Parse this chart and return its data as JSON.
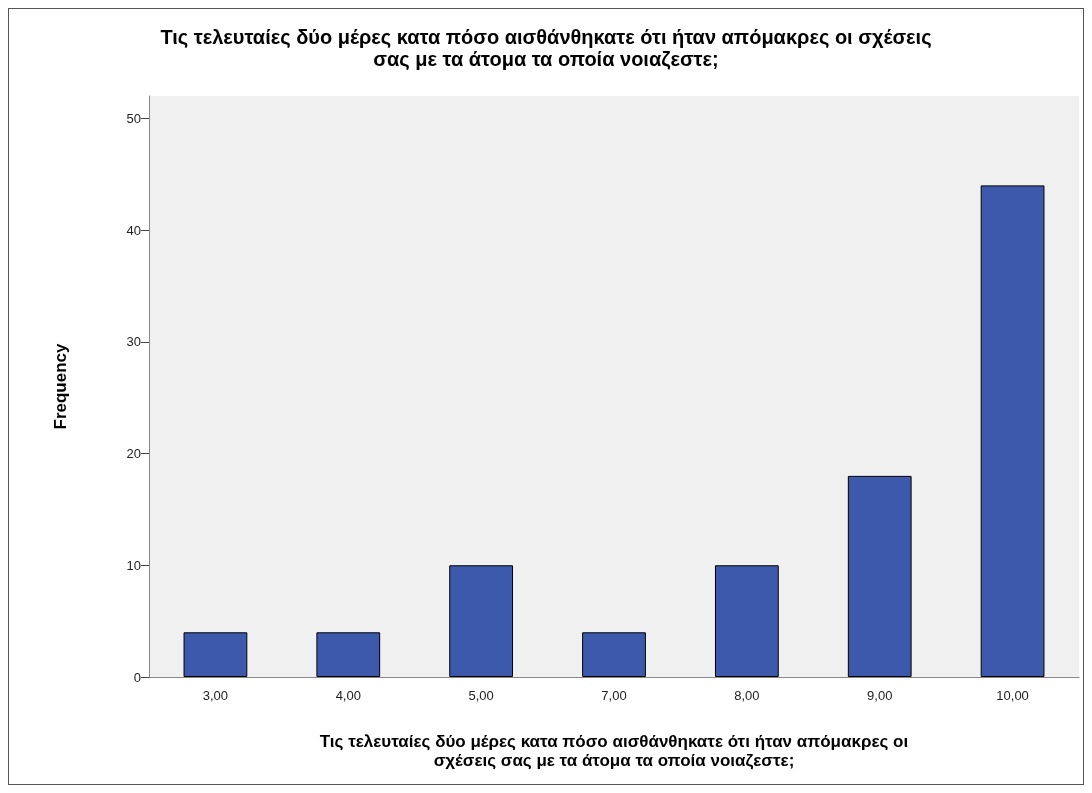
{
  "chart_data": {
    "type": "bar",
    "title": "Τις τελευταίες δύο μέρες κατα πόσο αισθάνθηκατε ότι ήταν απόμακρες οι σχέσεις\nσας με τα άτομα τα οποία νοιαζεστε;",
    "xlabel": "Τις τελευταίες δύο μέρες κατα πόσο αισθάνθηκατε ότι ήταν απόμακρες οι\nσχέσεις σας με τα άτομα τα οποία νοιαζεστε;",
    "ylabel": "Frequency",
    "categories": [
      "3,00",
      "4,00",
      "5,00",
      "7,00",
      "8,00",
      "9,00",
      "10,00"
    ],
    "values": [
      4,
      4,
      10,
      4,
      10,
      18,
      44
    ],
    "color": "#3d59ab",
    "ylim": [
      0,
      52
    ],
    "yticks": [
      0,
      10,
      20,
      30,
      40,
      50
    ],
    "grid": false
  }
}
